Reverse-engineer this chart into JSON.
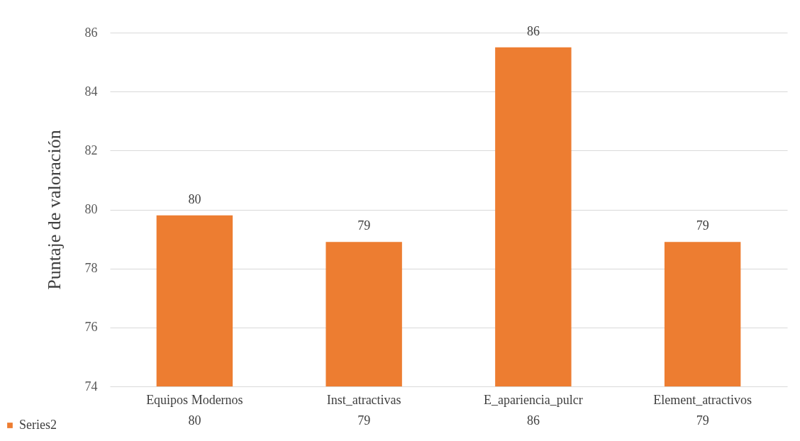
{
  "chart_data": {
    "type": "bar",
    "ylabel": "Puntaje de valoración",
    "categories": [
      "Equipos Modernos",
      "Inst_atractivas",
      "E_apariencia_pulcr",
      "Element_atractivos"
    ],
    "series": [
      {
        "name": "Series2",
        "color": "#ed7d31",
        "values": [
          79.8,
          78.9,
          85.5,
          78.9
        ],
        "value_labels": [
          "80",
          "79",
          "86",
          "79"
        ]
      }
    ],
    "ylim": [
      74,
      86
    ],
    "yticks": [
      74,
      76,
      78,
      80,
      82,
      84,
      86
    ],
    "grid": "y",
    "legend": "bottom left"
  }
}
